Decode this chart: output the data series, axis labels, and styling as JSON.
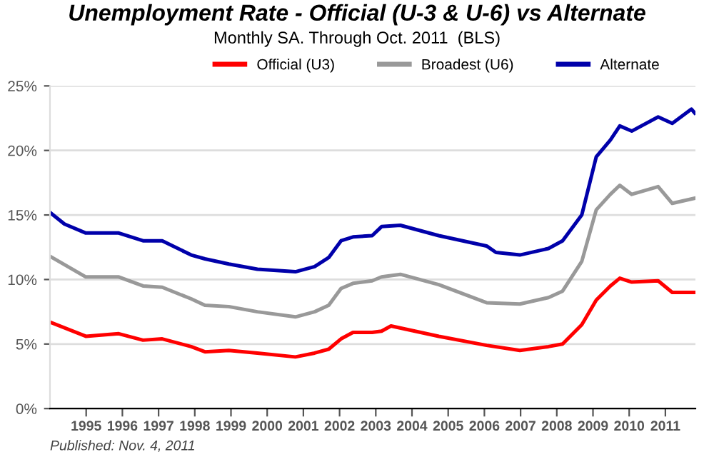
{
  "chart_data": {
    "type": "line",
    "title": "Unemployment Rate - Official (U-3 & U-6) vs Alternate",
    "subtitle": "Monthly SA. Through Oct. 2011  (BLS)",
    "annotations": [
      "Published: Nov. 4, 2011"
    ],
    "xlim": [
      1994,
      2011.83
    ],
    "xticks": [
      1995,
      1996,
      1997,
      1998,
      1999,
      2000,
      2001,
      2002,
      2003,
      2004,
      2005,
      2006,
      2007,
      2008,
      2009,
      2010,
      2011
    ],
    "ylim": [
      0,
      25
    ],
    "yticks": [
      {
        "value": 0,
        "label": "0%"
      },
      {
        "value": 5,
        "label": "5%"
      },
      {
        "value": 10,
        "label": "10%"
      },
      {
        "value": 15,
        "label": "15%"
      },
      {
        "value": 20,
        "label": "20%"
      },
      {
        "value": 25,
        "label": "25%"
      }
    ],
    "grid": "y",
    "legend": "top",
    "marker": "none",
    "line_style": "solid",
    "series": [
      {
        "name": "Official (U3)",
        "color": "#ff0000",
        "x": [
          1994.0,
          1994.99,
          1995.9,
          1996.57,
          1997.1,
          1997.9,
          1998.28,
          1998.94,
          1999.73,
          2000.78,
          2001.31,
          2001.7,
          2002.04,
          2002.37,
          2002.9,
          2003.16,
          2003.42,
          2004.74,
          2006.06,
          2006.98,
          2007.77,
          2008.16,
          2008.69,
          2009.09,
          2009.48,
          2009.74,
          2010.07,
          2010.8,
          2011.19,
          2011.81
        ],
        "values": [
          6.7,
          5.6,
          5.8,
          5.3,
          5.4,
          4.8,
          4.4,
          4.5,
          4.3,
          4.0,
          4.3,
          4.6,
          5.4,
          5.9,
          5.9,
          6.0,
          6.4,
          5.6,
          4.9,
          4.5,
          4.8,
          5.0,
          6.5,
          8.4,
          9.5,
          10.1,
          9.8,
          9.9,
          9.0,
          9.0
        ]
      },
      {
        "name": "Broadest (U6)",
        "color": "#999999",
        "x": [
          1994.0,
          1994.99,
          1995.9,
          1996.57,
          1997.1,
          1997.9,
          1998.28,
          1998.94,
          1999.73,
          2000.78,
          2001.31,
          2001.7,
          2002.04,
          2002.37,
          2002.9,
          2003.16,
          2003.68,
          2004.74,
          2006.06,
          2006.98,
          2007.77,
          2008.16,
          2008.69,
          2009.09,
          2009.48,
          2009.74,
          2010.07,
          2010.8,
          2011.19,
          2011.81
        ],
        "values": [
          11.8,
          10.2,
          10.2,
          9.5,
          9.4,
          8.5,
          8.0,
          7.9,
          7.5,
          7.1,
          7.5,
          8.0,
          9.3,
          9.7,
          9.9,
          10.2,
          10.4,
          9.6,
          8.2,
          8.1,
          8.6,
          9.1,
          11.4,
          15.4,
          16.6,
          17.3,
          16.6,
          17.2,
          15.9,
          16.3
        ]
      },
      {
        "name": "Alternate",
        "color": "#0000aa",
        "x": [
          1994.0,
          1994.4,
          1994.99,
          1995.9,
          1996.57,
          1997.1,
          1997.9,
          1998.28,
          1998.94,
          1999.73,
          2000.78,
          2001.31,
          2001.7,
          2002.04,
          2002.37,
          2002.9,
          2003.16,
          2003.68,
          2004.74,
          2006.06,
          2006.32,
          2006.98,
          2007.77,
          2008.16,
          2008.69,
          2009.09,
          2009.48,
          2009.74,
          2010.07,
          2010.8,
          2011.19,
          2011.72,
          2011.81
        ],
        "values": [
          15.2,
          14.3,
          13.6,
          13.6,
          13.0,
          13.0,
          11.9,
          11.6,
          11.2,
          10.8,
          10.6,
          11.0,
          11.7,
          13.0,
          13.3,
          13.4,
          14.1,
          14.2,
          13.4,
          12.6,
          12.1,
          11.9,
          12.4,
          13.0,
          15.0,
          19.5,
          20.8,
          21.9,
          21.5,
          22.6,
          22.1,
          23.2,
          22.9
        ]
      }
    ]
  }
}
